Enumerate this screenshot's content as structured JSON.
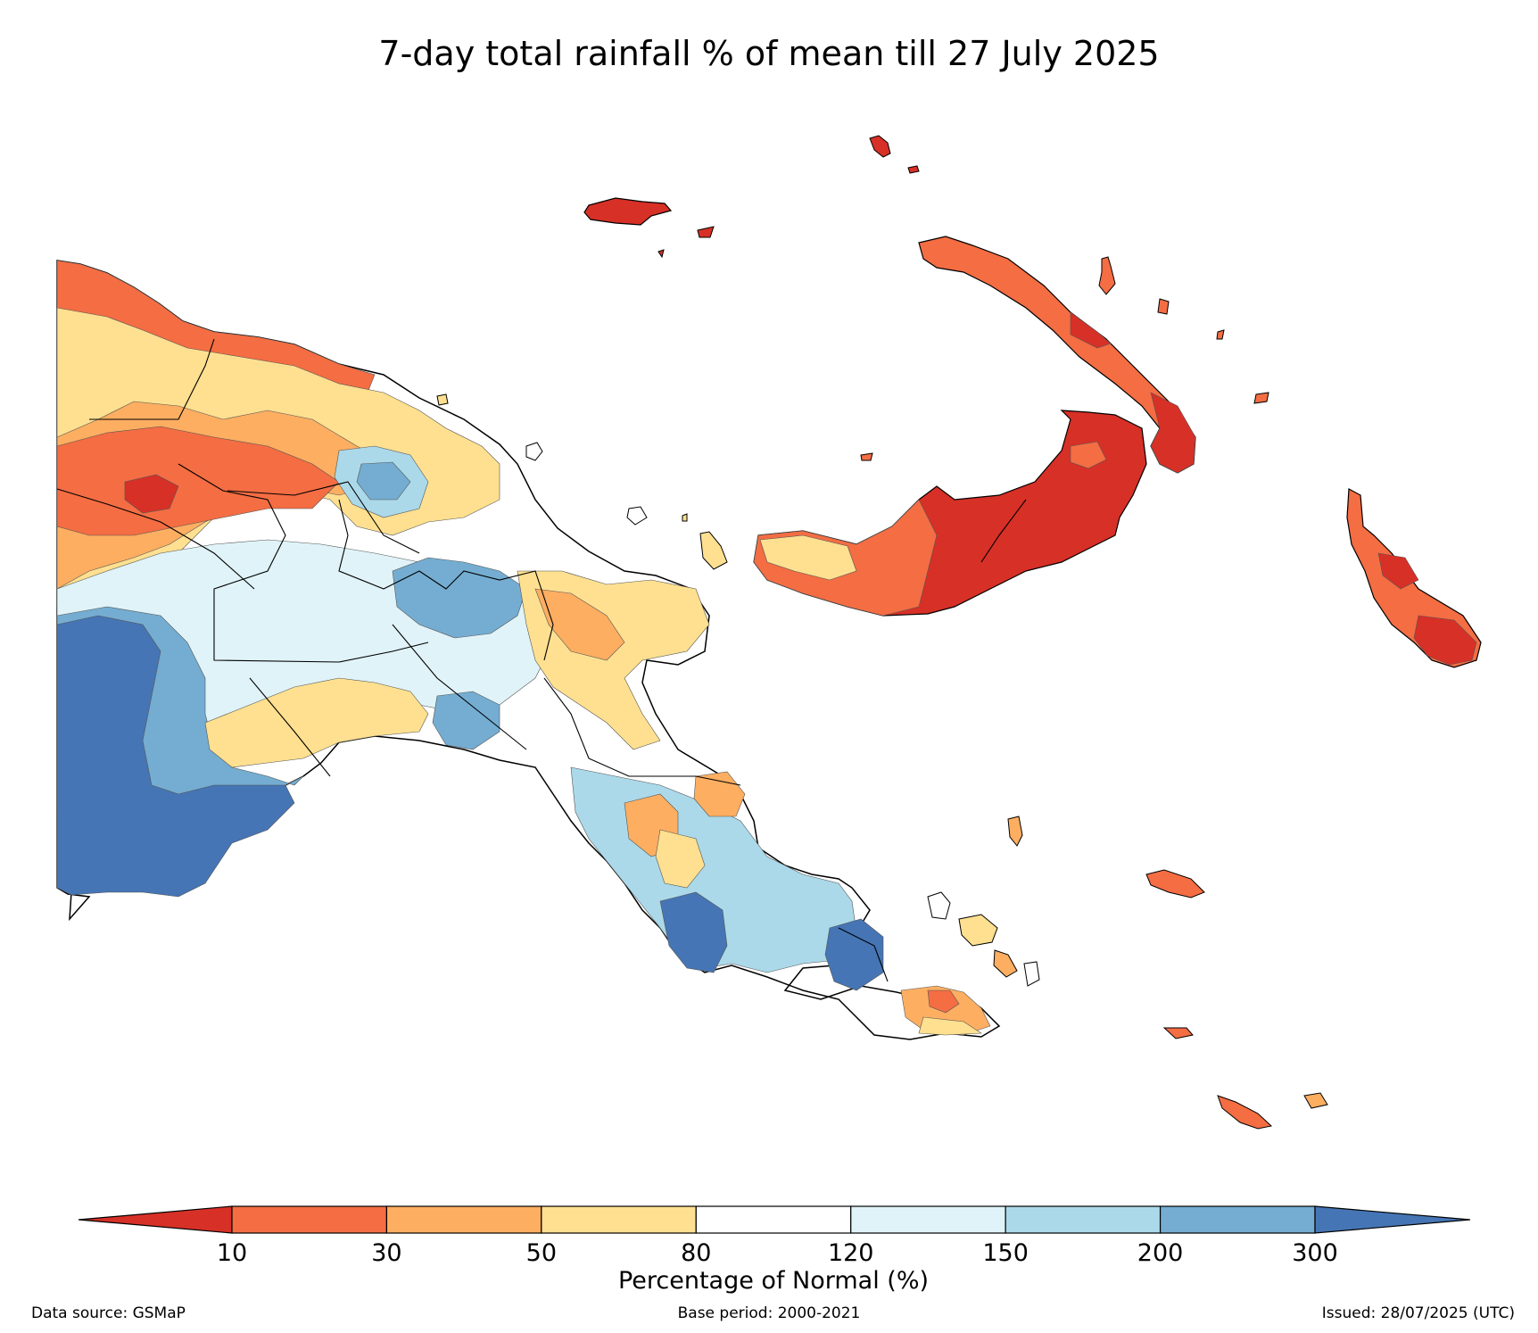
{
  "title": "7-day total rainfall % of mean till 27 July 2025",
  "colorbar": {
    "label": "Percentage of Normal (%)",
    "ticks": [
      "10",
      "30",
      "50",
      "80",
      "120",
      "150",
      "200",
      "300"
    ],
    "classes": [
      {
        "range": "<10",
        "color": "#d73027"
      },
      {
        "range": "10-30",
        "color": "#f46d43"
      },
      {
        "range": "30-50",
        "color": "#fdae61"
      },
      {
        "range": "50-80",
        "color": "#fee090"
      },
      {
        "range": "80-120",
        "color": "#ffffff"
      },
      {
        "range": "120-150",
        "color": "#e0f3f8"
      },
      {
        "range": "150-200",
        "color": "#abd9e9"
      },
      {
        "range": "200-300",
        "color": "#74add1"
      },
      {
        "range": ">300",
        "color": "#4575b4"
      }
    ]
  },
  "footer": {
    "data_source": "Data source: GSMaP",
    "base_period": "Base period: 2000-2021",
    "issued": "Issued: 28/07/2025 (UTC)"
  }
}
